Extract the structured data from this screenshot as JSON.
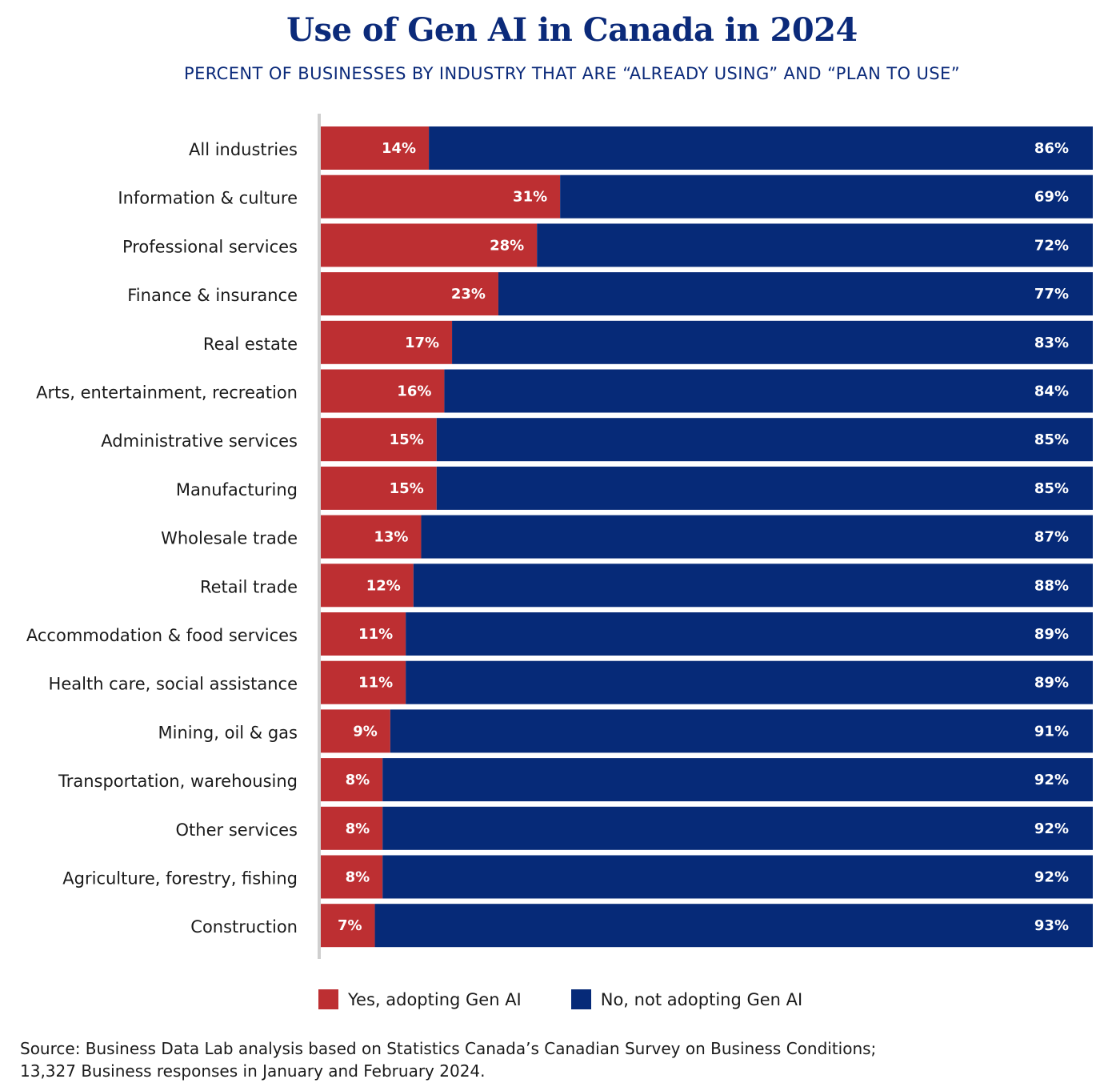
{
  "title": "Use of Gen AI in Canada in 2024",
  "subtitle": "PERCENT OF BUSINESSES BY INDUSTRY THAT ARE “ALREADY USING” AND “PLAN TO USE”",
  "legend": {
    "yes_label": "Yes, adopting Gen AI",
    "no_label": "No, not adopting Gen AI"
  },
  "colors": {
    "yes": "#bd2f32",
    "no": "#062a78",
    "axis": "#cfcfcf",
    "title": "#0b2a7a"
  },
  "source": {
    "line1": "Source: Business Data Lab analysis based on Statistics Canada’s Canadian Survey on Business Conditions;",
    "line2": "13,327 Business responses in January and February 2024."
  },
  "chart_data": {
    "type": "bar",
    "orientation": "horizontal",
    "stacked": true,
    "title": "Use of Gen AI in Canada in 2024",
    "subtitle": "PERCENT OF BUSINESSES BY INDUSTRY THAT ARE “ALREADY USING” AND “PLAN TO USE”",
    "unit": "%",
    "xlim": [
      0,
      100
    ],
    "grid": false,
    "legend_position": "bottom",
    "categories": [
      "All industries",
      "Information & culture",
      "Professional services",
      "Finance & insurance",
      "Real estate",
      "Arts, entertainment, recreation",
      "Administrative services",
      "Manufacturing",
      "Wholesale trade",
      "Retail trade",
      "Accommodation & food services",
      "Health care, social assistance",
      "Mining, oil & gas",
      "Transportation, warehousing",
      "Other services",
      "Agriculture, forestry, fishing",
      "Construction"
    ],
    "series": [
      {
        "name": "Yes, adopting Gen AI",
        "color": "#bd2f32",
        "values": [
          14,
          31,
          28,
          23,
          17,
          16,
          15,
          15,
          13,
          12,
          11,
          11,
          9,
          8,
          8,
          8,
          7
        ]
      },
      {
        "name": "No, not adopting Gen AI",
        "color": "#062a78",
        "values": [
          86,
          69,
          72,
          77,
          83,
          84,
          85,
          85,
          87,
          88,
          89,
          89,
          91,
          92,
          92,
          92,
          93
        ]
      }
    ]
  }
}
